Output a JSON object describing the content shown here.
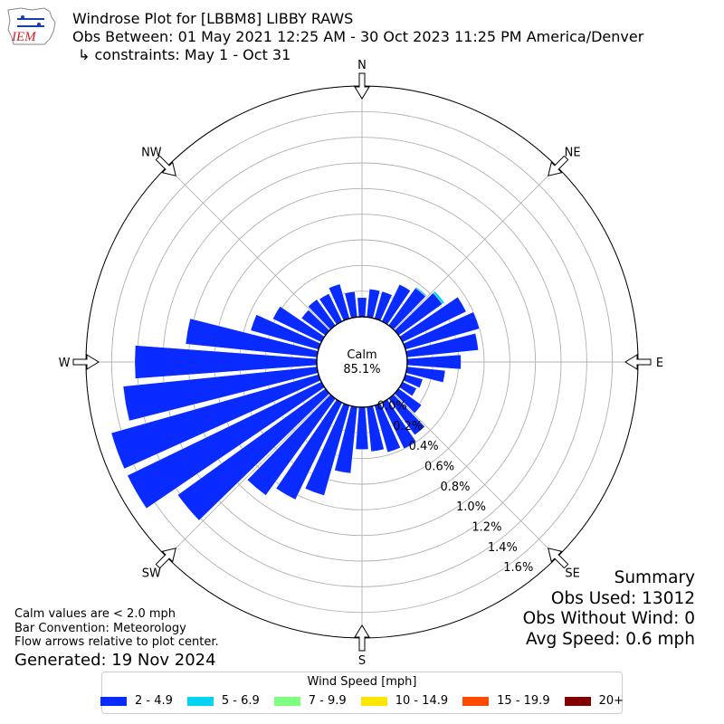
{
  "header": {
    "title": "Windrose Plot for [LBBM8] LIBBY RAWS",
    "obs_between": "Obs Between: 01 May 2021 12:25 AM - 30 Oct 2023 11:25 PM America/Denver",
    "constraints": "↳ constraints: May 1 - Oct 31",
    "logo_text": "IEM"
  },
  "summary": {
    "heading": "Summary",
    "obs_used": "Obs Used: 13012",
    "obs_without_wind": "Obs Without Wind: 0",
    "avg_speed": "Avg Speed: 0.6 mph"
  },
  "notes": {
    "calm_note": "Calm values are < 2.0 mph",
    "bar_convention": "Bar Convention: Meteorology",
    "flow_arrows": "Flow arrows relative to plot center.",
    "generated": "Generated: 19 Nov 2024"
  },
  "legend": {
    "title": "Wind Speed [mph]",
    "items": [
      {
        "label": "2 - 4.9",
        "color": "#0a2bff"
      },
      {
        "label": "5 - 6.9",
        "color": "#00d4f2"
      },
      {
        "label": "7 - 9.9",
        "color": "#7fff7f"
      },
      {
        "label": "10 - 14.9",
        "color": "#ffe600"
      },
      {
        "label": "15 - 19.9",
        "color": "#ff4a00"
      },
      {
        "label": "20+",
        "color": "#800000"
      }
    ]
  },
  "chart_data": {
    "type": "windrose",
    "calm_label": "Calm",
    "calm_percent": "85.1%",
    "directions": [
      "N",
      "NE",
      "E",
      "SE",
      "S",
      "SW",
      "W",
      "NW"
    ],
    "radial_ticks": [
      "0.0%",
      "0.2%",
      "0.4%",
      "0.6%",
      "0.8%",
      "1.0%",
      "1.2%",
      "1.4%",
      "1.6%"
    ],
    "rmax": 1.8,
    "sector_direction_deg": [
      0,
      10,
      20,
      30,
      40,
      50,
      60,
      70,
      80,
      90,
      100,
      110,
      120,
      130,
      140,
      150,
      160,
      170,
      180,
      190,
      200,
      210,
      220,
      230,
      240,
      250,
      260,
      270,
      280,
      290,
      300,
      310,
      320,
      330,
      340,
      350
    ],
    "series": [
      {
        "name": "2 - 4.9",
        "color": "#0a2bff",
        "values": [
          0.15,
          0.22,
          0.22,
          0.32,
          0.36,
          0.42,
          0.55,
          0.6,
          0.56,
          0.42,
          0.3,
          0.14,
          0.12,
          0.22,
          0.35,
          0.4,
          0.38,
          0.35,
          0.33,
          0.52,
          0.73,
          0.84,
          0.93,
          1.42,
          1.68,
          1.68,
          1.52,
          1.42,
          1.03,
          0.55,
          0.42,
          0.23,
          0.25,
          0.24,
          0.28,
          0.2
        ]
      },
      {
        "name": "5 - 6.9",
        "color": "#00d4f2",
        "values": [
          0,
          0,
          0,
          0,
          0.01,
          0.02,
          0,
          0,
          0,
          0,
          0,
          0,
          0,
          0,
          0,
          0,
          0,
          0,
          0,
          0,
          0,
          0,
          0,
          0,
          0,
          0,
          0,
          0,
          0,
          0,
          0,
          0,
          0,
          0,
          0,
          0
        ]
      }
    ]
  }
}
